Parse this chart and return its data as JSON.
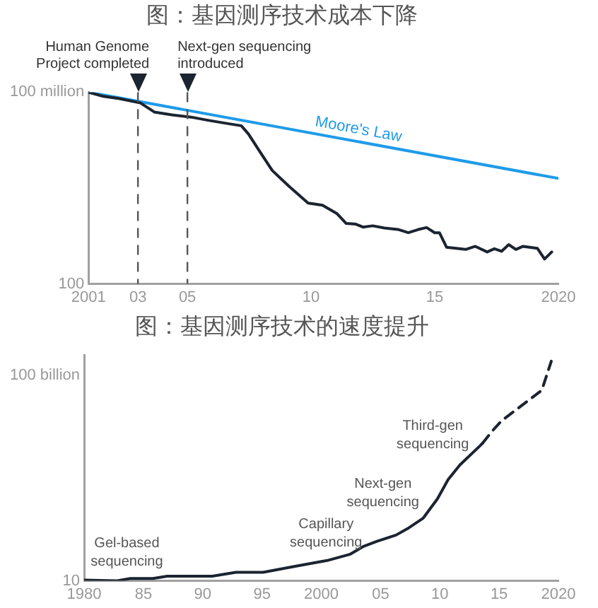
{
  "chart_data": [
    {
      "type": "line",
      "title": "图：基因测序技术成本下降",
      "log": "y",
      "grid": false,
      "legend": false,
      "marker": "none",
      "xlim": [
        2001,
        2020
      ],
      "xticks": [
        2001,
        {
          "value": 2003,
          "label": "03"
        },
        {
          "value": 2005,
          "label": "05"
        },
        {
          "value": 2010,
          "label": "10"
        },
        {
          "value": 2015,
          "label": "15"
        },
        2020
      ],
      "ylim": [
        100,
        100000000
      ],
      "yticks": [
        {
          "value": 100,
          "label": "100"
        },
        {
          "value": 100000000,
          "label": "100 million"
        }
      ],
      "series": [
        {
          "color": "#1b2430",
          "x": [
            2001,
            2001.6,
            2002.25,
            2003.1,
            2003.66,
            2004.38,
            2005.15,
            2005.83,
            2006.6,
            2007.18,
            2007.47,
            2007.95,
            2008.43,
            2009.1,
            2009.88,
            2010.46,
            2011.04,
            2011.42,
            2011.81,
            2012.1,
            2012.49,
            2012.97,
            2013.55,
            2013.93,
            2014.32,
            2014.67,
            2015,
            2015.19,
            2015.48,
            2016.25,
            2016.64,
            2017.12,
            2017.41,
            2017.7,
            2017.99,
            2018.28,
            2018.57,
            2019.15,
            2019.44,
            2019.73
          ],
          "values": [
            100000000,
            74000000,
            63000000,
            46000000,
            24000000,
            19500000,
            16600000,
            13200000,
            10500000,
            8900000,
            4900000,
            1300000,
            355000,
            115000,
            34000,
            29000,
            16000,
            7800,
            7400,
            6000,
            6600,
            5600,
            5000,
            4000,
            5000,
            5800,
            4000,
            4000,
            1400,
            1200,
            1500,
            1000,
            1260,
            1050,
            1700,
            1200,
            1500,
            1300,
            600,
            1000
          ]
        },
        {
          "name": "Moore's Law",
          "color": "#1e9be9",
          "x": [
            2001,
            2020
          ],
          "values": [
            100000000,
            200000
          ]
        }
      ],
      "ref_lines": [
        {
          "axis": "x",
          "value": 2003,
          "label": "Human Genome Project completed",
          "color": "#555555",
          "line_style": "dashed"
        },
        {
          "axis": "x",
          "value": 2005,
          "label": "Next-gen sequencing introduced",
          "color": "#555555",
          "line_style": "dashed"
        }
      ]
    },
    {
      "type": "line",
      "title": "图：基因测序技术的速度提升",
      "log": "y",
      "grid": false,
      "legend": false,
      "marker": "none",
      "xlim": [
        1980,
        2020
      ],
      "xticks": [
        1980,
        {
          "value": 1985,
          "label": "85"
        },
        {
          "value": 1990,
          "label": "90"
        },
        {
          "value": 1995,
          "label": "95"
        },
        2000,
        {
          "value": 2005,
          "label": "05"
        },
        {
          "value": 2010,
          "label": "10"
        },
        {
          "value": 2015,
          "label": "15"
        },
        2020
      ],
      "ylim": [
        10,
        1000000000000
      ],
      "yticks": [
        {
          "value": 10,
          "label": "10"
        },
        {
          "value": 100000000000,
          "label": "100 billion"
        }
      ],
      "series": [
        {
          "color": "#1b2430",
          "x": [
            1980,
            1982.7,
            1983.9,
            1985.8,
            1987,
            1990.8,
            1992.8,
            1995.1,
            1997.8,
            2000.5,
            2002.4,
            2003.6,
            2004.7,
            2006.3,
            2007.4,
            2008.6,
            2009.8,
            2010.7,
            2011.7,
            2013.4,
            2013.6
          ],
          "values": [
            11,
            10,
            13,
            13,
            17,
            17,
            26,
            26,
            51,
            98,
            195,
            490,
            850,
            1700,
            3900,
            11500,
            100000,
            870000,
            4500000,
            39000000,
            51000000
          ]
        },
        {
          "color": "#1b2430",
          "line_style": "dashed",
          "x": [
            2013.6,
            2014.4,
            2015.2,
            2018.6,
            2019.4
          ],
          "values": [
            51000000,
            195000000,
            630000000,
            19500000000,
            510000000000
          ]
        }
      ],
      "annotations": [
        "Gel-based sequencing",
        "Capillary sequencing",
        "Next-gen sequencing",
        "Third-gen sequencing"
      ]
    }
  ]
}
